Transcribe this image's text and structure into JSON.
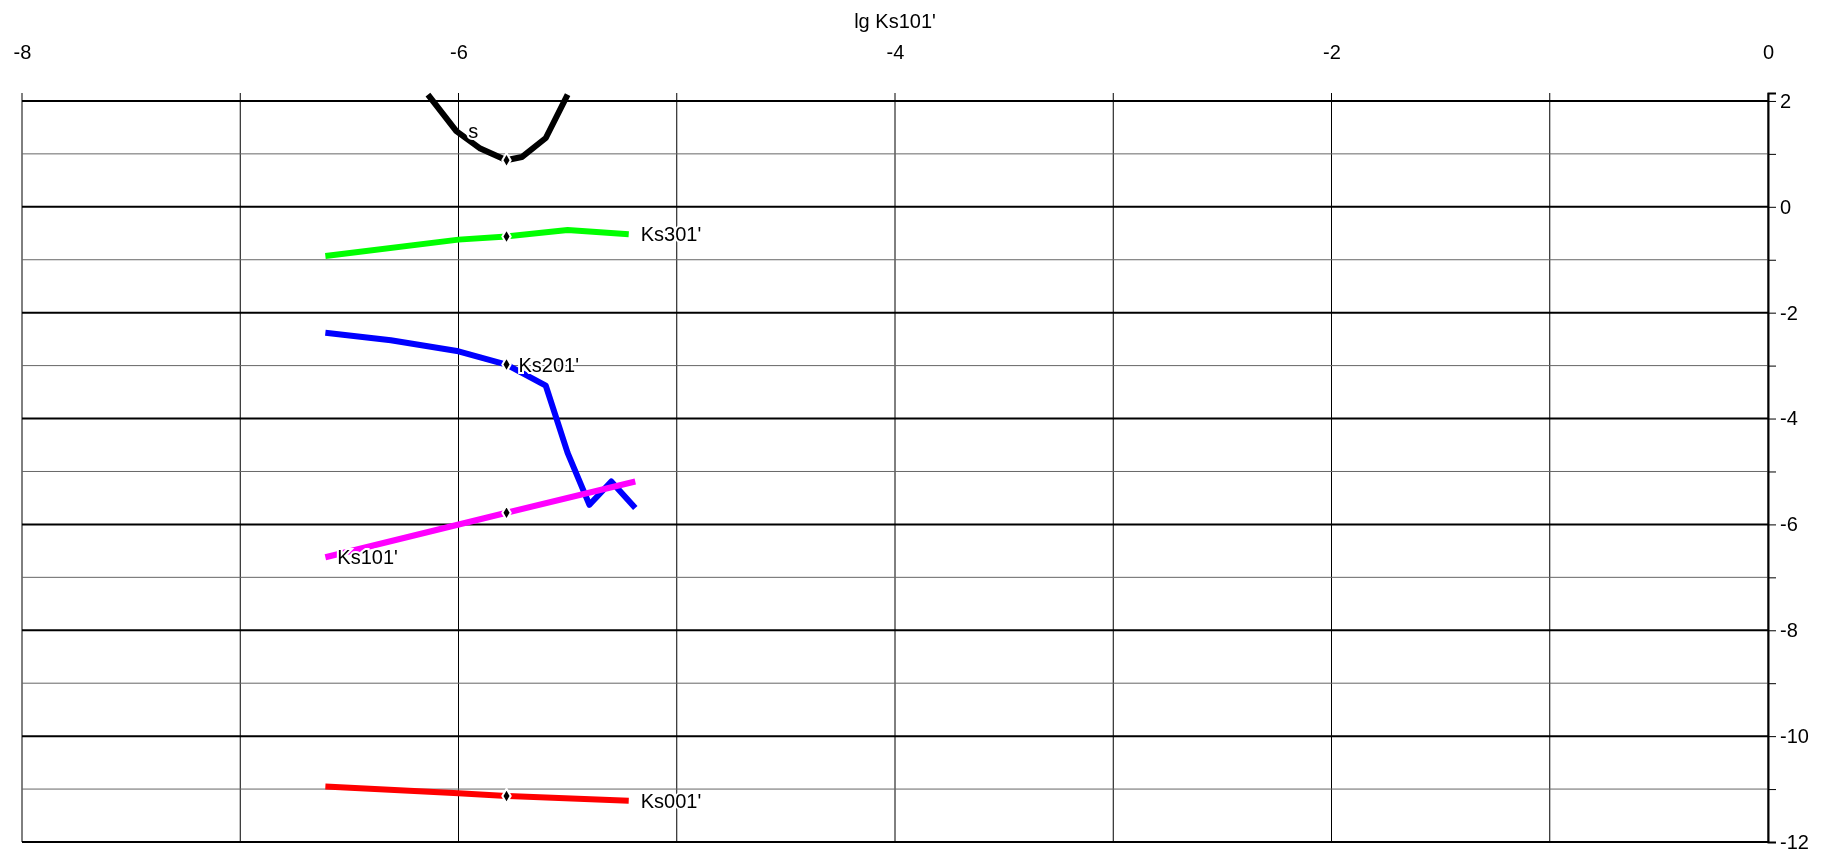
{
  "chart_data": {
    "type": "line",
    "xlabel": "lg Ks101'",
    "xlim": [
      -8,
      0
    ],
    "xticks": [
      -8,
      {
        "value": -7,
        "label": null
      },
      -6,
      {
        "value": -5,
        "label": null
      },
      -4,
      {
        "value": -3,
        "label": null
      },
      -2,
      {
        "value": -1,
        "label": null
      },
      0
    ],
    "ylim": [
      -12,
      2.15
    ],
    "yticks": [
      -12,
      {
        "value": -11,
        "label": null
      },
      -10,
      {
        "value": -9,
        "label": null
      },
      -8,
      {
        "value": -7,
        "label": null
      },
      -6,
      {
        "value": -5,
        "label": null
      },
      -4,
      {
        "value": -3,
        "label": null
      },
      -2,
      {
        "value": -1,
        "label": null
      },
      0,
      {
        "value": 1,
        "label": null
      },
      2
    ],
    "grid": true,
    "line_style": "solid",
    "marker": "none",
    "series": [
      {
        "color": "#000000",
        "x": [
          -6.14,
          -6.01,
          -5.9,
          -5.78,
          -5.71,
          -5.6,
          -5.5
        ],
        "values": [
          2.12,
          1.43,
          1.1,
          0.88,
          0.94,
          1.3,
          2.12
        ]
      },
      {
        "color": "#00ff00",
        "x": [
          -6.61,
          -6.0,
          -5.78,
          -5.5,
          -5.22
        ],
        "values": [
          -0.93,
          -0.62,
          -0.56,
          -0.44,
          -0.52
        ]
      },
      {
        "color": "#0000ff",
        "x": [
          -6.61,
          -6.31,
          -6.0,
          -5.78,
          -5.6,
          -5.5,
          -5.4,
          -5.3,
          -5.19
        ],
        "values": [
          -2.38,
          -2.52,
          -2.73,
          -2.98,
          -3.38,
          -4.65,
          -5.63,
          -5.19,
          -5.69
        ]
      },
      {
        "color": "#ff00ff",
        "x": [
          -6.61,
          -5.78,
          -5.19
        ],
        "values": [
          -6.62,
          -5.78,
          -5.19
        ]
      },
      {
        "color": "#ff0000",
        "x": [
          -6.61,
          -6.0,
          -5.78,
          -5.22
        ],
        "values": [
          -10.95,
          -11.08,
          -11.13,
          -11.22
        ]
      },
      {
        "type": "scatter",
        "marker": "diamond",
        "color": "#000000",
        "x": [
          -5.78,
          -5.78,
          -5.78,
          -5.78,
          -5.78
        ],
        "values": [
          0.88,
          -0.56,
          -2.98,
          -5.78,
          -11.13
        ]
      }
    ],
    "annotations": [
      {
        "text": "s",
        "x": -6.01,
        "y": 1.43
      },
      {
        "text": "Ks301'",
        "x": -5.22,
        "y": -0.52
      },
      {
        "text": "Ks201'",
        "x": -5.78,
        "y": -2.98
      },
      {
        "text": "Ks101'",
        "x": -6.61,
        "y": -6.62
      },
      {
        "text": "Ks001'",
        "x": -5.22,
        "y": -11.22
      }
    ]
  }
}
